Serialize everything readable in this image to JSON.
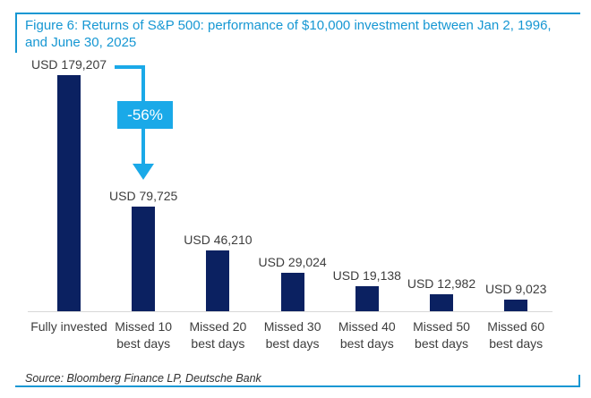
{
  "header": {
    "title_line1": "Figure 6: Returns of S&P 500: performance of $10,000 investment between Jan 2, 1996,",
    "title_line2": "and June 30, 2025"
  },
  "annotation": {
    "label": "-56%"
  },
  "footer": {
    "source": "Source: Bloomberg Finance LP, Deutsche Bank"
  },
  "colors": {
    "accent_blue": "#1697d3",
    "arrow_blue": "#1aa9e8",
    "bar_navy": "#0b2161",
    "axis_gray": "#d8d8d8",
    "label_gray": "#3d3d3d"
  },
  "chart_data": {
    "type": "bar",
    "title": "Figure 6: Returns of S&P 500: performance of $10,000 investment between Jan 2, 1996, and June 30, 2025",
    "categories": [
      "Fully invested",
      "Missed 10 best days",
      "Missed 20 best days",
      "Missed 30 best days",
      "Missed 40 best days",
      "Missed 50 best days",
      "Missed 60 best days"
    ],
    "category_lines": [
      [
        "Fully invested"
      ],
      [
        "Missed 10",
        "best days"
      ],
      [
        "Missed 20",
        "best days"
      ],
      [
        "Missed 30",
        "best days"
      ],
      [
        "Missed 40",
        "best days"
      ],
      [
        "Missed 50",
        "best days"
      ],
      [
        "Missed 60",
        "best days"
      ]
    ],
    "values": [
      179207,
      79725,
      46210,
      29024,
      19138,
      12982,
      9023
    ],
    "value_labels": [
      "USD 179,207",
      "USD 79,725",
      "USD 46,210",
      "USD 29,024",
      "USD 19,138",
      "USD 12,982",
      "USD 9,023"
    ],
    "unit": "USD",
    "ylim": [
      0,
      185000
    ],
    "grid": false,
    "legend": null,
    "annotation": {
      "label": "-56%",
      "from": "Fully invested",
      "to": "Missed 10 best days"
    },
    "source": "Source: Bloomberg Finance LP, Deutsche Bank"
  }
}
